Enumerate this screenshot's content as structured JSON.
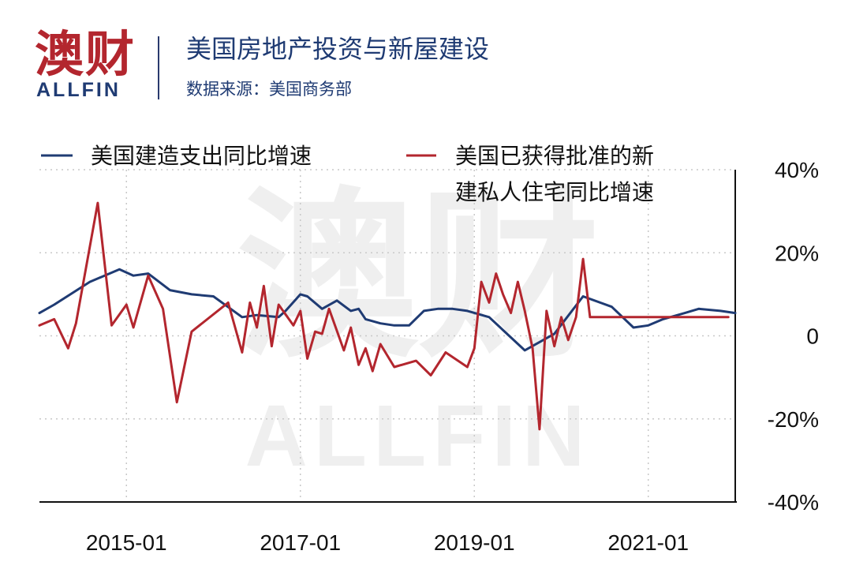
{
  "logo": {
    "cn": "澳财",
    "en": "ALLFIN"
  },
  "title": "美国房地产投资与新屋建设",
  "subtitle": "数据来源：美国商务部",
  "watermark": {
    "cn": "澳财",
    "en": "ALLFIN"
  },
  "colors": {
    "blue": "#1f3b73",
    "red": "#b3262e"
  },
  "chart_data": {
    "type": "line",
    "title": "美国房地产投资与新屋建设",
    "xlabel": "",
    "ylabel": "",
    "x_tick_labels": [
      "2015-01",
      "2017-01",
      "2019-01",
      "2021-01"
    ],
    "y_tick_labels": [
      "40%",
      "20%",
      "0",
      "-20%",
      "-40%"
    ],
    "ylim": [
      -40,
      40
    ],
    "xlim": [
      2014.0,
      2022.0
    ],
    "grid": true,
    "legend_position": "top",
    "series": [
      {
        "name": "美国建造支出同比增速",
        "color": "#1f3b73",
        "x": [
          2014.0,
          2014.17,
          2014.58,
          2014.92,
          2015.08,
          2015.25,
          2015.5,
          2015.75,
          2016.0,
          2016.33,
          2016.5,
          2016.75,
          2016.83,
          2017.0,
          2017.08,
          2017.25,
          2017.42,
          2017.58,
          2017.67,
          2017.75,
          2017.92,
          2018.08,
          2018.25,
          2018.42,
          2018.58,
          2018.75,
          2018.92,
          2019.17,
          2019.58,
          2019.92,
          2020.25,
          2020.58,
          2020.83,
          2021.0,
          2021.17,
          2021.42,
          2021.58,
          2021.83,
          2022.0
        ],
        "values": [
          5.5,
          7.5,
          13.0,
          16.0,
          14.5,
          15.0,
          11.0,
          10.0,
          9.5,
          4.5,
          5.0,
          4.5,
          6.0,
          10.0,
          9.5,
          6.5,
          8.5,
          6.0,
          6.5,
          4.0,
          3.0,
          2.5,
          2.5,
          6.0,
          6.5,
          6.5,
          6.0,
          4.5,
          -3.5,
          0.5,
          9.5,
          7.0,
          2.0,
          2.5,
          4.0,
          5.5,
          6.5,
          6.0,
          5.5
        ]
      },
      {
        "name": "美国已获得批准的新建私人住宅同比增速",
        "color": "#b3262e",
        "x": [
          2014.0,
          2014.17,
          2014.33,
          2014.42,
          2014.67,
          2014.83,
          2015.0,
          2015.08,
          2015.25,
          2015.42,
          2015.58,
          2015.75,
          2016.17,
          2016.33,
          2016.42,
          2016.5,
          2016.58,
          2016.67,
          2016.75,
          2016.92,
          2017.0,
          2017.08,
          2017.17,
          2017.25,
          2017.33,
          2017.5,
          2017.58,
          2017.67,
          2017.75,
          2017.83,
          2017.92,
          2018.08,
          2018.33,
          2018.5,
          2018.67,
          2018.92,
          2019.0,
          2019.08,
          2019.17,
          2019.25,
          2019.33,
          2019.42,
          2019.5,
          2019.58,
          2019.67,
          2019.75,
          2019.83,
          2019.92,
          2020.0,
          2020.08,
          2020.17,
          2020.25,
          2020.33,
          2020.5,
          2020.58,
          2020.67,
          2020.83,
          2021.0,
          2021.17,
          2021.25,
          2021.42,
          2021.5,
          2021.58,
          2021.67,
          2021.75,
          2021.83,
          2021.92
        ],
        "values": [
          2.5,
          4.0,
          -3.0,
          3.0,
          32.0,
          2.5,
          7.5,
          2.0,
          14.5,
          6.5,
          -16.0,
          1.0,
          8.0,
          -4.0,
          8.0,
          2.0,
          12.0,
          -2.5,
          7.5,
          2.5,
          6.0,
          -5.5,
          1.0,
          0.5,
          6.5,
          -3.5,
          2.0,
          -7.0,
          -3.0,
          -8.5,
          -2.0,
          -7.5,
          -6.0,
          -9.5,
          -4.0,
          -7.5,
          -3.0,
          13.0,
          8.0,
          15.0,
          10.0,
          5.5,
          13.0,
          6.0,
          -3.0,
          -22.5,
          6.0,
          -2.5,
          4.5,
          -1.0,
          4.5,
          18.5,
          4.5,
          4.5,
          4.5,
          4.5,
          4.5,
          4.5,
          4.5,
          4.5,
          4.5,
          4.5,
          4.5,
          4.5,
          4.5,
          4.5,
          4.5
        ]
      }
    ]
  }
}
